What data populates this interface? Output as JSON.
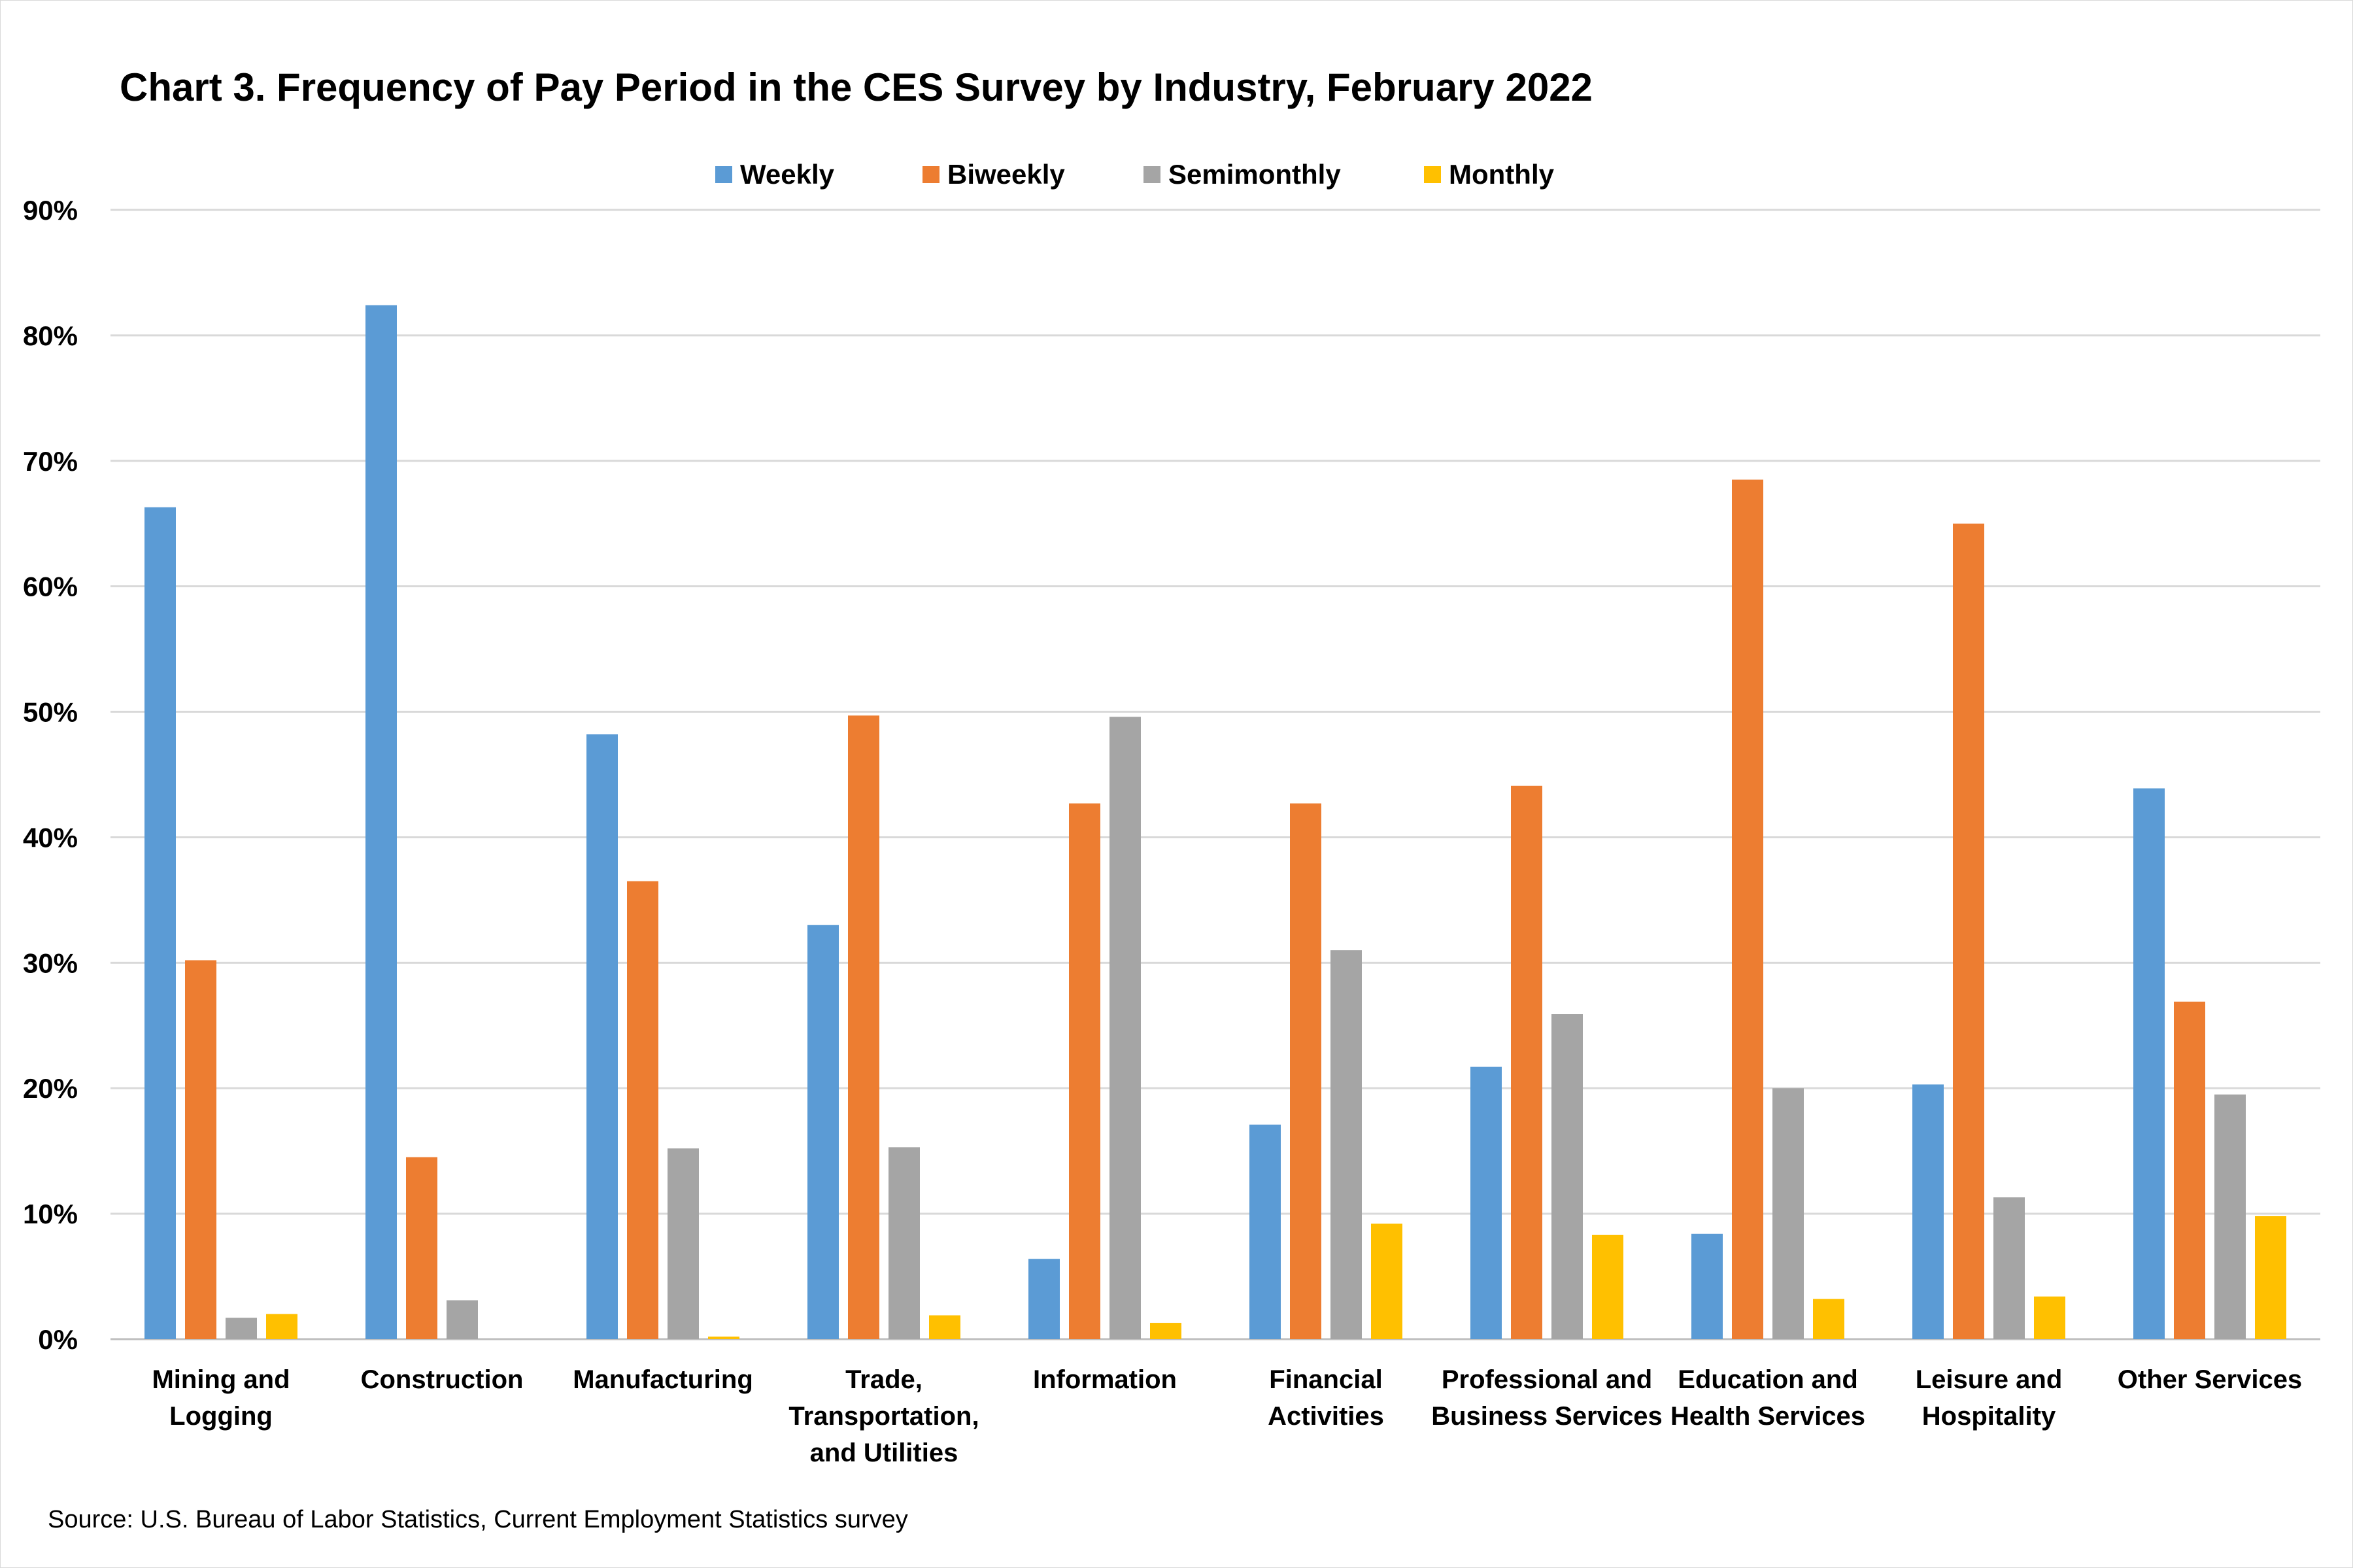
{
  "chart_data": {
    "type": "bar",
    "title": "Chart 3. Frequency of Pay Period in the CES Survey by Industry, February 2022",
    "source": "Source: U.S. Bureau of Labor Statistics, Current Employment Statistics survey",
    "categories": [
      [
        "Mining and",
        "Logging"
      ],
      [
        "Construction"
      ],
      [
        "Manufacturing"
      ],
      [
        "Trade,",
        "Transportation,",
        "and Utilities"
      ],
      [
        "Information"
      ],
      [
        "Financial",
        "Activities"
      ],
      [
        "Professional and",
        "Business Services"
      ],
      [
        "Education and",
        "Health Services"
      ],
      [
        "Leisure and",
        "Hospitality"
      ],
      [
        "Other Services"
      ]
    ],
    "series": [
      {
        "name": "Weekly",
        "color": "#5b9bd5",
        "values": [
          66.3,
          82.4,
          48.2,
          33.0,
          6.4,
          17.1,
          21.7,
          8.4,
          20.3,
          43.9
        ]
      },
      {
        "name": "Biweekly",
        "color": "#ed7d31",
        "values": [
          30.2,
          14.5,
          36.5,
          49.7,
          42.7,
          42.7,
          44.1,
          68.5,
          65.0,
          26.9
        ]
      },
      {
        "name": "Semimonthly",
        "color": "#a5a5a5",
        "values": [
          1.7,
          3.1,
          15.2,
          15.3,
          49.6,
          31.0,
          25.9,
          20.0,
          11.3,
          19.5
        ]
      },
      {
        "name": "Monthly",
        "color": "#ffc000",
        "values": [
          2.0,
          0.0,
          0.2,
          1.9,
          1.3,
          9.2,
          8.3,
          3.2,
          3.4,
          9.8
        ]
      }
    ],
    "ylim": [
      0,
      90
    ],
    "yticks": [
      "0%",
      "10%",
      "20%",
      "30%",
      "40%",
      "50%",
      "60%",
      "70%",
      "80%",
      "90%"
    ],
    "grid": true,
    "legend_position": "top"
  }
}
